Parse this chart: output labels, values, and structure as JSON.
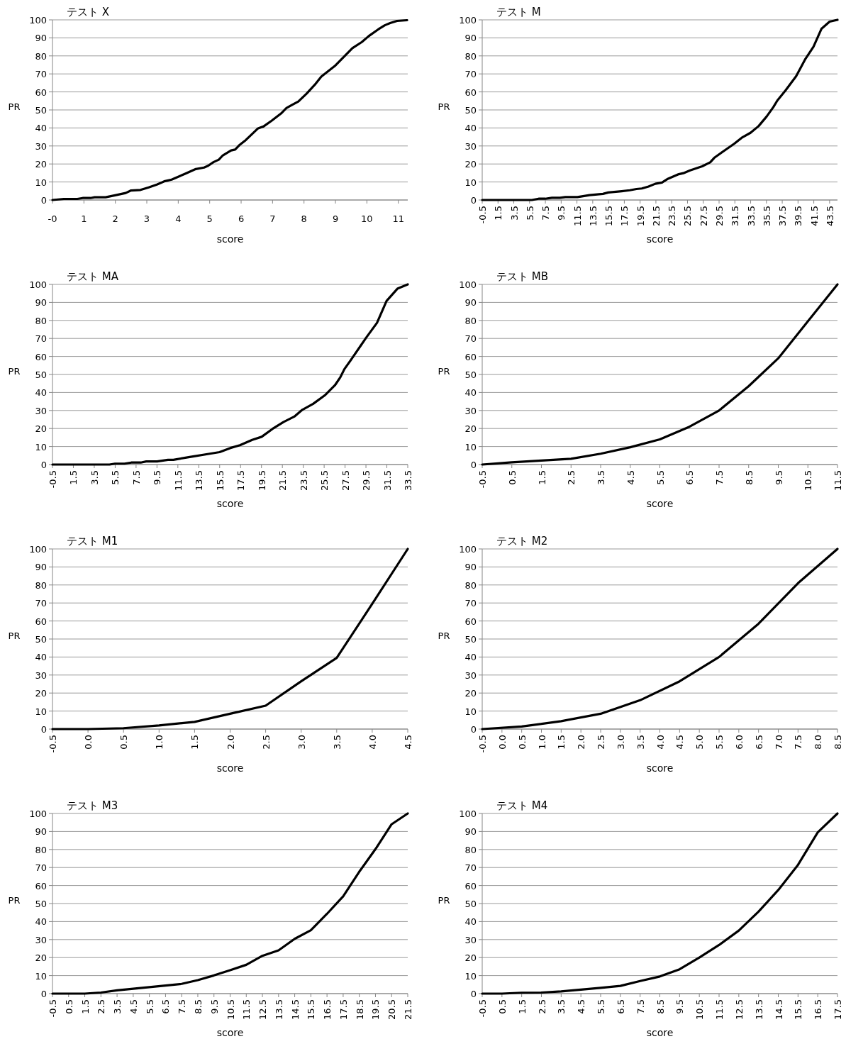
{
  "chart_data": [
    {
      "type": "line",
      "title": "テスト X",
      "xlabel": "score",
      "ylabel": "PR",
      "color": "#000000",
      "grid": "y",
      "xlim": [
        0,
        11.3
      ],
      "ylim": [
        0,
        100
      ],
      "xticks": [
        {
          "value": 0,
          "label": "-0"
        },
        1,
        2,
        3,
        4,
        5,
        6,
        7,
        8,
        9,
        10,
        11
      ],
      "yticks": [
        0,
        10,
        20,
        30,
        40,
        50,
        60,
        70,
        80,
        90,
        100
      ],
      "x": [
        0,
        0.36,
        0.79,
        0.96,
        1.21,
        1.34,
        1.69,
        1.99,
        2.33,
        2.5,
        2.8,
        3.06,
        3.32,
        3.58,
        3.79,
        4.22,
        4.56,
        4.82,
        4.95,
        5.12,
        5.29,
        5.42,
        5.68,
        5.81,
        5.94,
        6.15,
        6.54,
        6.71,
        6.97,
        7.27,
        7.44,
        7.61,
        7.82,
        8.08,
        8.34,
        8.55,
        8.98,
        9.54,
        9.84,
        10.06,
        10.36,
        10.57,
        10.74,
        10.96,
        11.28
      ],
      "values": [
        0,
        0.6,
        0.6,
        1.1,
        1.1,
        1.5,
        1.5,
        2.6,
        3.9,
        5.3,
        5.6,
        7,
        8.6,
        10.5,
        11.3,
        14.6,
        17.2,
        18,
        19,
        21,
        22.4,
        24.8,
        27.5,
        28,
        30.4,
        33.3,
        39.8,
        40.8,
        44,
        48,
        51,
        52.7,
        54.7,
        59,
        63.9,
        68.5,
        74.4,
        84.3,
        87.7,
        91,
        94.7,
        97,
        98.2,
        99.4,
        99.8
      ]
    },
    {
      "type": "line",
      "title": "テスト M",
      "xlabel": "score",
      "ylabel": "PR",
      "color": "#000000",
      "grid": "y",
      "xlim": [
        -0.5,
        44.5
      ],
      "ylim": [
        0,
        100
      ],
      "xticks": [
        -0.5,
        1.5,
        3.5,
        5.5,
        7.5,
        9.5,
        11.5,
        13.5,
        15.5,
        17.5,
        19.5,
        21.5,
        23.5,
        25.5,
        27.5,
        29.5,
        31.5,
        33.5,
        35.5,
        37.5,
        39.5,
        41.5,
        43.5
      ],
      "yticks": [
        0,
        10,
        20,
        30,
        40,
        50,
        60,
        70,
        80,
        90,
        100
      ],
      "x": [
        -0.5,
        5.79,
        6.64,
        7.49,
        8.33,
        9.35,
        10.03,
        11.56,
        12.41,
        13.09,
        14.79,
        15.47,
        17.17,
        18.19,
        19.04,
        19.72,
        20.57,
        21.42,
        22.27,
        22.94,
        24.3,
        24.98,
        25.83,
        27.36,
        28.38,
        28.89,
        29.74,
        31.44,
        32.46,
        33.48,
        34.5,
        35.52,
        36.37,
        36.88,
        37.9,
        39.26,
        40.45,
        41.46,
        42.48,
        43.5,
        44.5
      ],
      "values": [
        0,
        0,
        0.7,
        0.7,
        1.2,
        1.2,
        1.6,
        1.6,
        2.2,
        2.7,
        3.4,
        4.2,
        4.9,
        5.4,
        6.1,
        6.4,
        7.5,
        9,
        9.7,
        11.6,
        14.2,
        14.9,
        16.4,
        18.7,
        20.9,
        23.4,
        26.1,
        31.3,
        34.8,
        37.3,
        41,
        46.3,
        51.5,
        55.2,
        60.7,
        68.7,
        78.4,
        85.1,
        95.1,
        99,
        100
      ]
    },
    {
      "type": "line",
      "title": "テスト MA",
      "xlabel": "score",
      "ylabel": "PR",
      "color": "#000000",
      "grid": "y",
      "xlim": [
        -0.5,
        33.5
      ],
      "ylim": [
        0,
        100
      ],
      "xticks": [
        -0.5,
        1.5,
        3.5,
        5.5,
        7.5,
        9.5,
        11.5,
        13.5,
        15.5,
        17.5,
        19.5,
        21.5,
        23.5,
        25.5,
        27.5,
        29.5,
        31.5,
        33.5
      ],
      "yticks": [
        0,
        10,
        20,
        30,
        40,
        50,
        60,
        70,
        80,
        90,
        100
      ],
      "x": [
        -0.5,
        4.96,
        5.48,
        6.39,
        7.04,
        7.95,
        8.47,
        9.51,
        10.55,
        11.07,
        12.63,
        14.45,
        15.49,
        16.53,
        17.44,
        18.61,
        19.52,
        20.56,
        21.6,
        22.64,
        23.41,
        24.45,
        25.62,
        26.53,
        27.05,
        27.44,
        28.09,
        29.52,
        30.56,
        31.47,
        32.51,
        33.5
      ],
      "values": [
        0,
        0,
        0.5,
        0.5,
        1.1,
        1.1,
        1.7,
        1.7,
        2.6,
        2.6,
        4.2,
        5.9,
        6.9,
        9.2,
        10.7,
        13.7,
        15.4,
        19.8,
        23.6,
        26.6,
        30.4,
        33.7,
        38.7,
        44,
        48.5,
        53,
        58.3,
        70.4,
        78.7,
        90.8,
        97.6,
        100
      ]
    },
    {
      "type": "line",
      "title": "テスト MB",
      "xlabel": "score",
      "ylabel": "PR",
      "color": "#000000",
      "grid": "y",
      "xlim": [
        -0.5,
        11.5
      ],
      "ylim": [
        0,
        100
      ],
      "xticks": [
        -0.5,
        0.5,
        1.5,
        2.5,
        3.5,
        4.5,
        5.5,
        6.5,
        7.5,
        8.5,
        9.5,
        10.5,
        11.5
      ],
      "yticks": [
        0,
        10,
        20,
        30,
        40,
        50,
        60,
        70,
        80,
        90,
        100
      ],
      "x": [
        -0.5,
        0.5,
        1.5,
        2.5,
        3.5,
        4.5,
        5.5,
        6.5,
        7.5,
        8.5,
        9.5,
        10.5,
        11.5
      ],
      "values": [
        0,
        1.2,
        2.2,
        3.2,
        6,
        9.6,
        14,
        21,
        30,
        43.5,
        59,
        79.5,
        100
      ]
    },
    {
      "type": "line",
      "title": "テスト M1",
      "xlabel": "score",
      "ylabel": "PR",
      "color": "#000000",
      "grid": "y",
      "xlim": [
        -0.5,
        4.5
      ],
      "ylim": [
        0,
        100
      ],
      "xticks": [
        -0.5,
        {
          "value": 0,
          "label": "0.0"
        },
        0.5,
        {
          "value": 1,
          "label": "1.0"
        },
        1.5,
        {
          "value": 2,
          "label": "2.0"
        },
        2.5,
        {
          "value": 3,
          "label": "3.0"
        },
        3.5,
        {
          "value": 4,
          "label": "4.0"
        },
        4.5
      ],
      "yticks": [
        0,
        10,
        20,
        30,
        40,
        50,
        60,
        70,
        80,
        90,
        100
      ],
      "x": [
        -0.5,
        0,
        0.5,
        1,
        1.5,
        2,
        2.5,
        3,
        3.5,
        4,
        4.5
      ],
      "values": [
        0,
        0,
        0.5,
        2,
        4,
        8.5,
        13,
        26.5,
        39.5,
        69.5,
        100
      ]
    },
    {
      "type": "line",
      "title": "テスト M2",
      "xlabel": "score",
      "ylabel": "PR",
      "color": "#000000",
      "grid": "y",
      "xlim": [
        -0.5,
        8.5
      ],
      "ylim": [
        0,
        100
      ],
      "xticks": [
        -0.5,
        {
          "value": 0,
          "label": "0.0"
        },
        0.5,
        {
          "value": 1,
          "label": "1.0"
        },
        1.5,
        {
          "value": 2,
          "label": "2.0"
        },
        2.5,
        {
          "value": 3,
          "label": "3.0"
        },
        3.5,
        {
          "value": 4,
          "label": "4.0"
        },
        4.5,
        {
          "value": 5,
          "label": "5.0"
        },
        5.5,
        {
          "value": 6,
          "label": "6.0"
        },
        6.5,
        {
          "value": 7,
          "label": "7.0"
        },
        7.5,
        {
          "value": 8,
          "label": "8.0"
        },
        8.5
      ],
      "yticks": [
        0,
        10,
        20,
        30,
        40,
        50,
        60,
        70,
        80,
        90,
        100
      ],
      "x": [
        -0.5,
        0.5,
        1.5,
        2.5,
        3.5,
        4.5,
        5.5,
        6.5,
        7.5,
        8.5
      ],
      "values": [
        0,
        1.4,
        4.4,
        8.5,
        16,
        26.5,
        40,
        58.5,
        81,
        100
      ]
    },
    {
      "type": "line",
      "title": "テスト M3",
      "xlabel": "score",
      "ylabel": "PR",
      "color": "#000000",
      "grid": "y",
      "xlim": [
        -0.5,
        21.5
      ],
      "ylim": [
        0,
        100
      ],
      "xticks": [
        -0.5,
        0.5,
        1.5,
        2.5,
        3.5,
        4.5,
        5.5,
        6.5,
        7.5,
        8.5,
        9.5,
        10.5,
        11.5,
        12.5,
        13.5,
        14.5,
        15.5,
        16.5,
        17.5,
        18.5,
        19.5,
        20.5,
        21.5
      ],
      "yticks": [
        0,
        10,
        20,
        30,
        40,
        50,
        60,
        70,
        80,
        90,
        100
      ],
      "x": [
        -0.5,
        0.5,
        1.5,
        2.5,
        3.5,
        4.5,
        5.5,
        6.5,
        7.5,
        8.5,
        9.5,
        10.5,
        11.5,
        12.5,
        13.5,
        14.5,
        15.5,
        16.5,
        17.5,
        18.5,
        19.5,
        20.5,
        21.5
      ],
      "values": [
        0,
        0,
        0,
        0.6,
        1.8,
        2.7,
        3.6,
        4.5,
        5.4,
        7.5,
        10.1,
        13,
        16,
        21,
        24,
        30.4,
        35.2,
        44.3,
        54,
        67.7,
        80.2,
        94,
        100
      ]
    },
    {
      "type": "line",
      "title": "テスト M4",
      "xlabel": "score",
      "ylabel": "PR",
      "color": "#000000",
      "grid": "y",
      "xlim": [
        -0.5,
        17.5
      ],
      "ylim": [
        0,
        100
      ],
      "xticks": [
        -0.5,
        0.5,
        1.5,
        2.5,
        3.5,
        4.5,
        5.5,
        6.5,
        7.5,
        8.5,
        9.5,
        10.5,
        11.5,
        12.5,
        13.5,
        14.5,
        15.5,
        16.5,
        17.5
      ],
      "yticks": [
        0,
        10,
        20,
        30,
        40,
        50,
        60,
        70,
        80,
        90,
        100
      ],
      "x": [
        -0.5,
        0.5,
        1.5,
        2.5,
        3.5,
        4.5,
        5.5,
        6.5,
        7.5,
        8.5,
        9.5,
        10.5,
        11.5,
        12.5,
        13.5,
        14.5,
        15.5,
        16.5,
        17.5
      ],
      "values": [
        0,
        0,
        0.5,
        0.6,
        1.2,
        2.2,
        3.2,
        4.3,
        7,
        9.5,
        13.5,
        20,
        27,
        35,
        45.5,
        57.5,
        71.5,
        89.5,
        100
      ]
    }
  ]
}
